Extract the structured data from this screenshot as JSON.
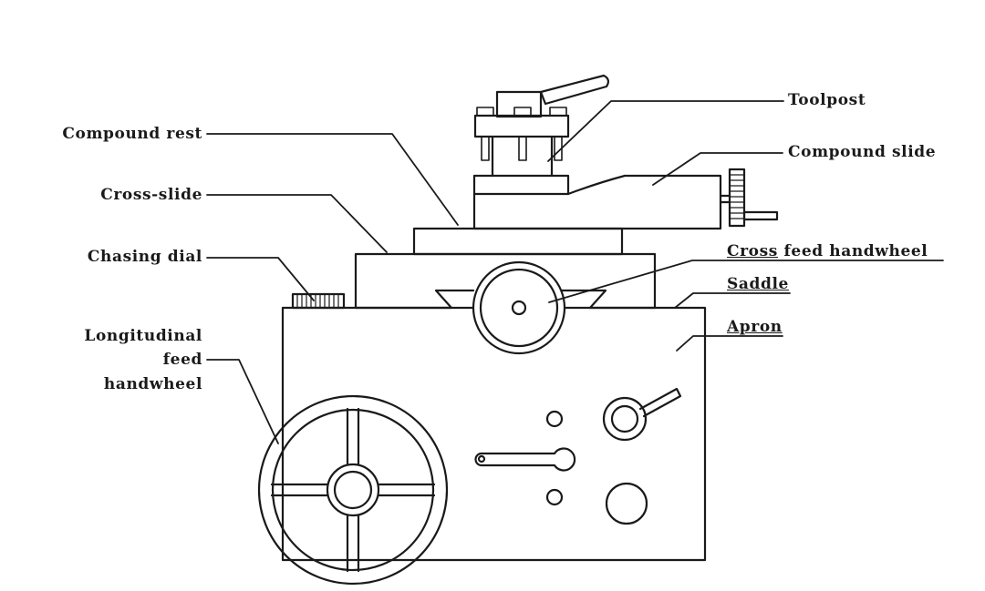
{
  "labels": {
    "toolpost": "Toolpost",
    "compound_rest": "Compound rest",
    "compound_slide": "Compound slide",
    "cross_slide": "Cross-slide",
    "chasing_dial": "Chasing dial",
    "cross_feed_handwheel_1": "Cross",
    "cross_feed_handwheel_2": "feed handwheel",
    "saddle": "Saddle",
    "apron": "Apron",
    "longitudinal_1": "Longitudinal",
    "longitudinal_2": "feed",
    "longitudinal_3": "handwheel"
  },
  "colors": {
    "ink": "#1a1a1a",
    "background": "#ffffff"
  }
}
